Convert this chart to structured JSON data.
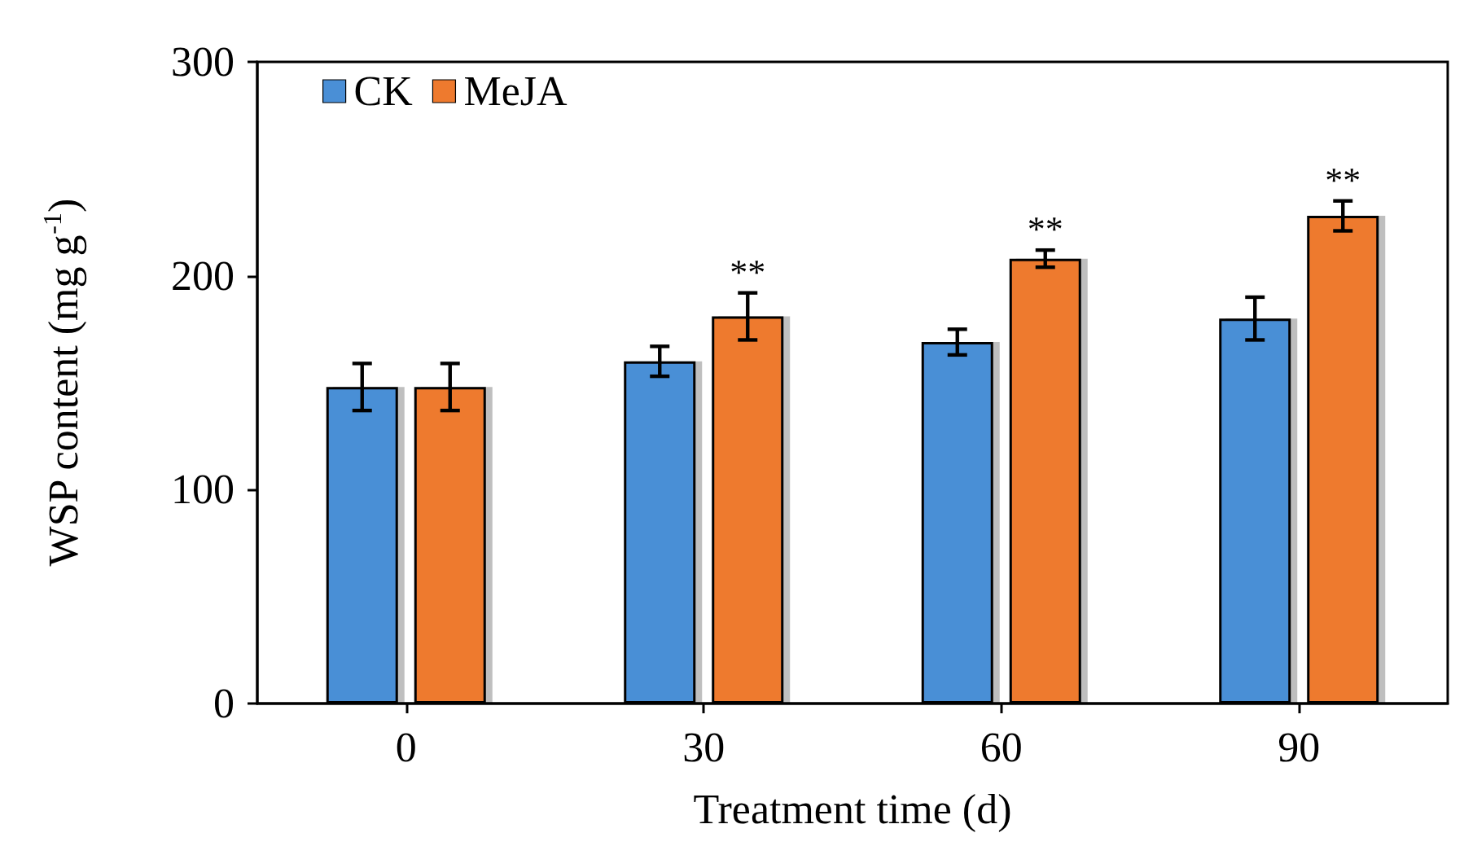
{
  "chart_data": {
    "type": "bar",
    "xlabel": "Treatment time (d)",
    "ylabel": "WSP content (mg g$^{-1}$)",
    "categories": [
      "0",
      "30",
      "60",
      "90"
    ],
    "series": [
      {
        "name": "CK",
        "color": "#4a8fd6",
        "values": [
          148,
          160,
          169,
          180
        ],
        "errors": [
          11,
          7,
          6,
          10
        ]
      },
      {
        "name": "MeJA",
        "color": "#ee7a2e",
        "values": [
          148,
          181,
          208,
          228
        ],
        "errors": [
          11,
          11,
          4,
          7
        ],
        "value_labels": [
          null,
          "**",
          "**",
          "**"
        ]
      }
    ],
    "ylim": [
      0,
      300
    ],
    "yticks": [
      0,
      100,
      200,
      300
    ],
    "grid": false,
    "legend": "top left"
  }
}
